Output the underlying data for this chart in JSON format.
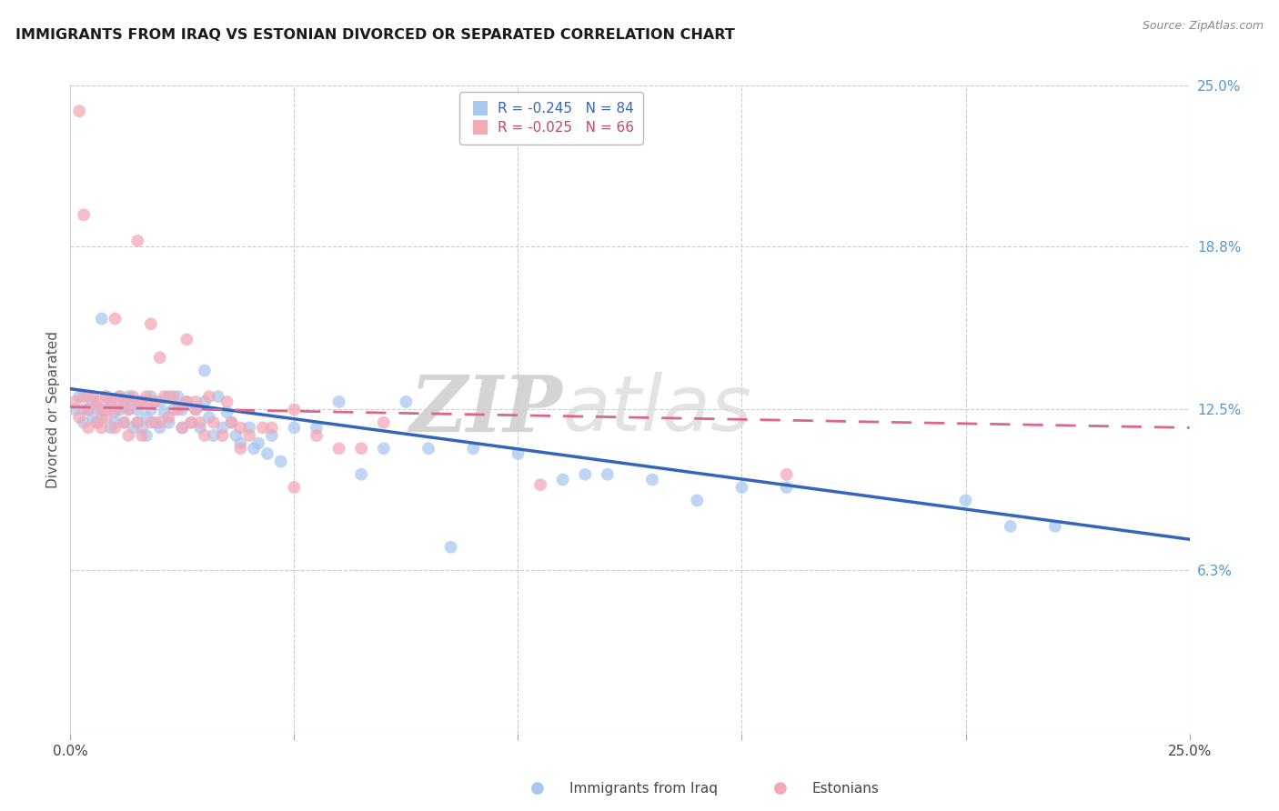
{
  "title": "IMMIGRANTS FROM IRAQ VS ESTONIAN DIVORCED OR SEPARATED CORRELATION CHART",
  "source": "Source: ZipAtlas.com",
  "ylabel": "Divorced or Separated",
  "x_min": 0.0,
  "x_max": 0.25,
  "y_min": 0.0,
  "y_max": 0.25,
  "y_tick_labels_right": [
    "6.3%",
    "12.5%",
    "18.8%",
    "25.0%"
  ],
  "y_tick_vals_right": [
    0.063,
    0.125,
    0.188,
    0.25
  ],
  "iraq_color": "#a8c8f0",
  "estonian_color": "#f4a8b8",
  "iraq_line_color": "#3366bb",
  "estonian_line_color": "#dd6688",
  "watermark_zip": "ZIP",
  "watermark_atlas": "atlas",
  "legend_iraq_label": "R = -0.245   N = 84",
  "legend_est_label": "R = -0.025   N = 66",
  "legend_iraq_color": "#a8c8f0",
  "legend_est_color": "#f4a8b8",
  "bottom_label_iraq": "Immigrants from Iraq",
  "bottom_label_est": "Estonians",
  "iraq_line_y0": 0.133,
  "iraq_line_y1": 0.075,
  "est_line_y0": 0.126,
  "est_line_y1": 0.118,
  "iraq_points_x": [
    0.001,
    0.002,
    0.003,
    0.003,
    0.004,
    0.004,
    0.005,
    0.005,
    0.006,
    0.006,
    0.007,
    0.007,
    0.008,
    0.008,
    0.009,
    0.009,
    0.01,
    0.01,
    0.011,
    0.011,
    0.012,
    0.012,
    0.013,
    0.013,
    0.014,
    0.014,
    0.015,
    0.015,
    0.016,
    0.016,
    0.017,
    0.017,
    0.018,
    0.018,
    0.019,
    0.02,
    0.02,
    0.021,
    0.022,
    0.022,
    0.023,
    0.024,
    0.025,
    0.025,
    0.026,
    0.027,
    0.028,
    0.029,
    0.03,
    0.03,
    0.031,
    0.032,
    0.033,
    0.034,
    0.035,
    0.036,
    0.037,
    0.038,
    0.04,
    0.041,
    0.042,
    0.044,
    0.045,
    0.047,
    0.05,
    0.055,
    0.06,
    0.065,
    0.07,
    0.075,
    0.08,
    0.085,
    0.09,
    0.1,
    0.11,
    0.12,
    0.13,
    0.14,
    0.16,
    0.2,
    0.115,
    0.15,
    0.21,
    0.22
  ],
  "iraq_points_y": [
    0.125,
    0.13,
    0.125,
    0.12,
    0.125,
    0.13,
    0.128,
    0.122,
    0.126,
    0.12,
    0.16,
    0.122,
    0.13,
    0.125,
    0.128,
    0.118,
    0.124,
    0.12,
    0.13,
    0.125,
    0.126,
    0.12,
    0.125,
    0.13,
    0.128,
    0.118,
    0.125,
    0.12,
    0.128,
    0.118,
    0.122,
    0.115,
    0.13,
    0.125,
    0.12,
    0.128,
    0.118,
    0.124,
    0.13,
    0.12,
    0.125,
    0.13,
    0.125,
    0.118,
    0.128,
    0.12,
    0.125,
    0.118,
    0.128,
    0.14,
    0.122,
    0.115,
    0.13,
    0.118,
    0.124,
    0.12,
    0.115,
    0.112,
    0.118,
    0.11,
    0.112,
    0.108,
    0.115,
    0.105,
    0.118,
    0.118,
    0.128,
    0.1,
    0.11,
    0.128,
    0.11,
    0.072,
    0.11,
    0.108,
    0.098,
    0.1,
    0.098,
    0.09,
    0.095,
    0.09,
    0.1,
    0.095,
    0.08,
    0.08
  ],
  "estonian_points_x": [
    0.001,
    0.002,
    0.003,
    0.004,
    0.004,
    0.005,
    0.006,
    0.006,
    0.007,
    0.007,
    0.008,
    0.008,
    0.009,
    0.01,
    0.01,
    0.011,
    0.012,
    0.012,
    0.013,
    0.013,
    0.014,
    0.015,
    0.015,
    0.016,
    0.016,
    0.017,
    0.018,
    0.018,
    0.019,
    0.02,
    0.021,
    0.022,
    0.023,
    0.024,
    0.025,
    0.026,
    0.027,
    0.028,
    0.029,
    0.03,
    0.031,
    0.032,
    0.034,
    0.035,
    0.036,
    0.038,
    0.04,
    0.043,
    0.045,
    0.05,
    0.055,
    0.06,
    0.065,
    0.07,
    0.003,
    0.015,
    0.02,
    0.028,
    0.038,
    0.05,
    0.002,
    0.01,
    0.018,
    0.026,
    0.105,
    0.16
  ],
  "estonian_points_y": [
    0.128,
    0.122,
    0.13,
    0.125,
    0.118,
    0.13,
    0.128,
    0.12,
    0.125,
    0.118,
    0.13,
    0.122,
    0.128,
    0.125,
    0.118,
    0.13,
    0.128,
    0.12,
    0.125,
    0.115,
    0.13,
    0.128,
    0.12,
    0.128,
    0.115,
    0.13,
    0.128,
    0.12,
    0.128,
    0.12,
    0.13,
    0.122,
    0.13,
    0.125,
    0.118,
    0.128,
    0.12,
    0.128,
    0.12,
    0.115,
    0.13,
    0.12,
    0.115,
    0.128,
    0.12,
    0.118,
    0.115,
    0.118,
    0.118,
    0.125,
    0.115,
    0.11,
    0.11,
    0.12,
    0.2,
    0.19,
    0.145,
    0.125,
    0.11,
    0.095,
    0.24,
    0.16,
    0.158,
    0.152,
    0.096,
    0.1
  ]
}
